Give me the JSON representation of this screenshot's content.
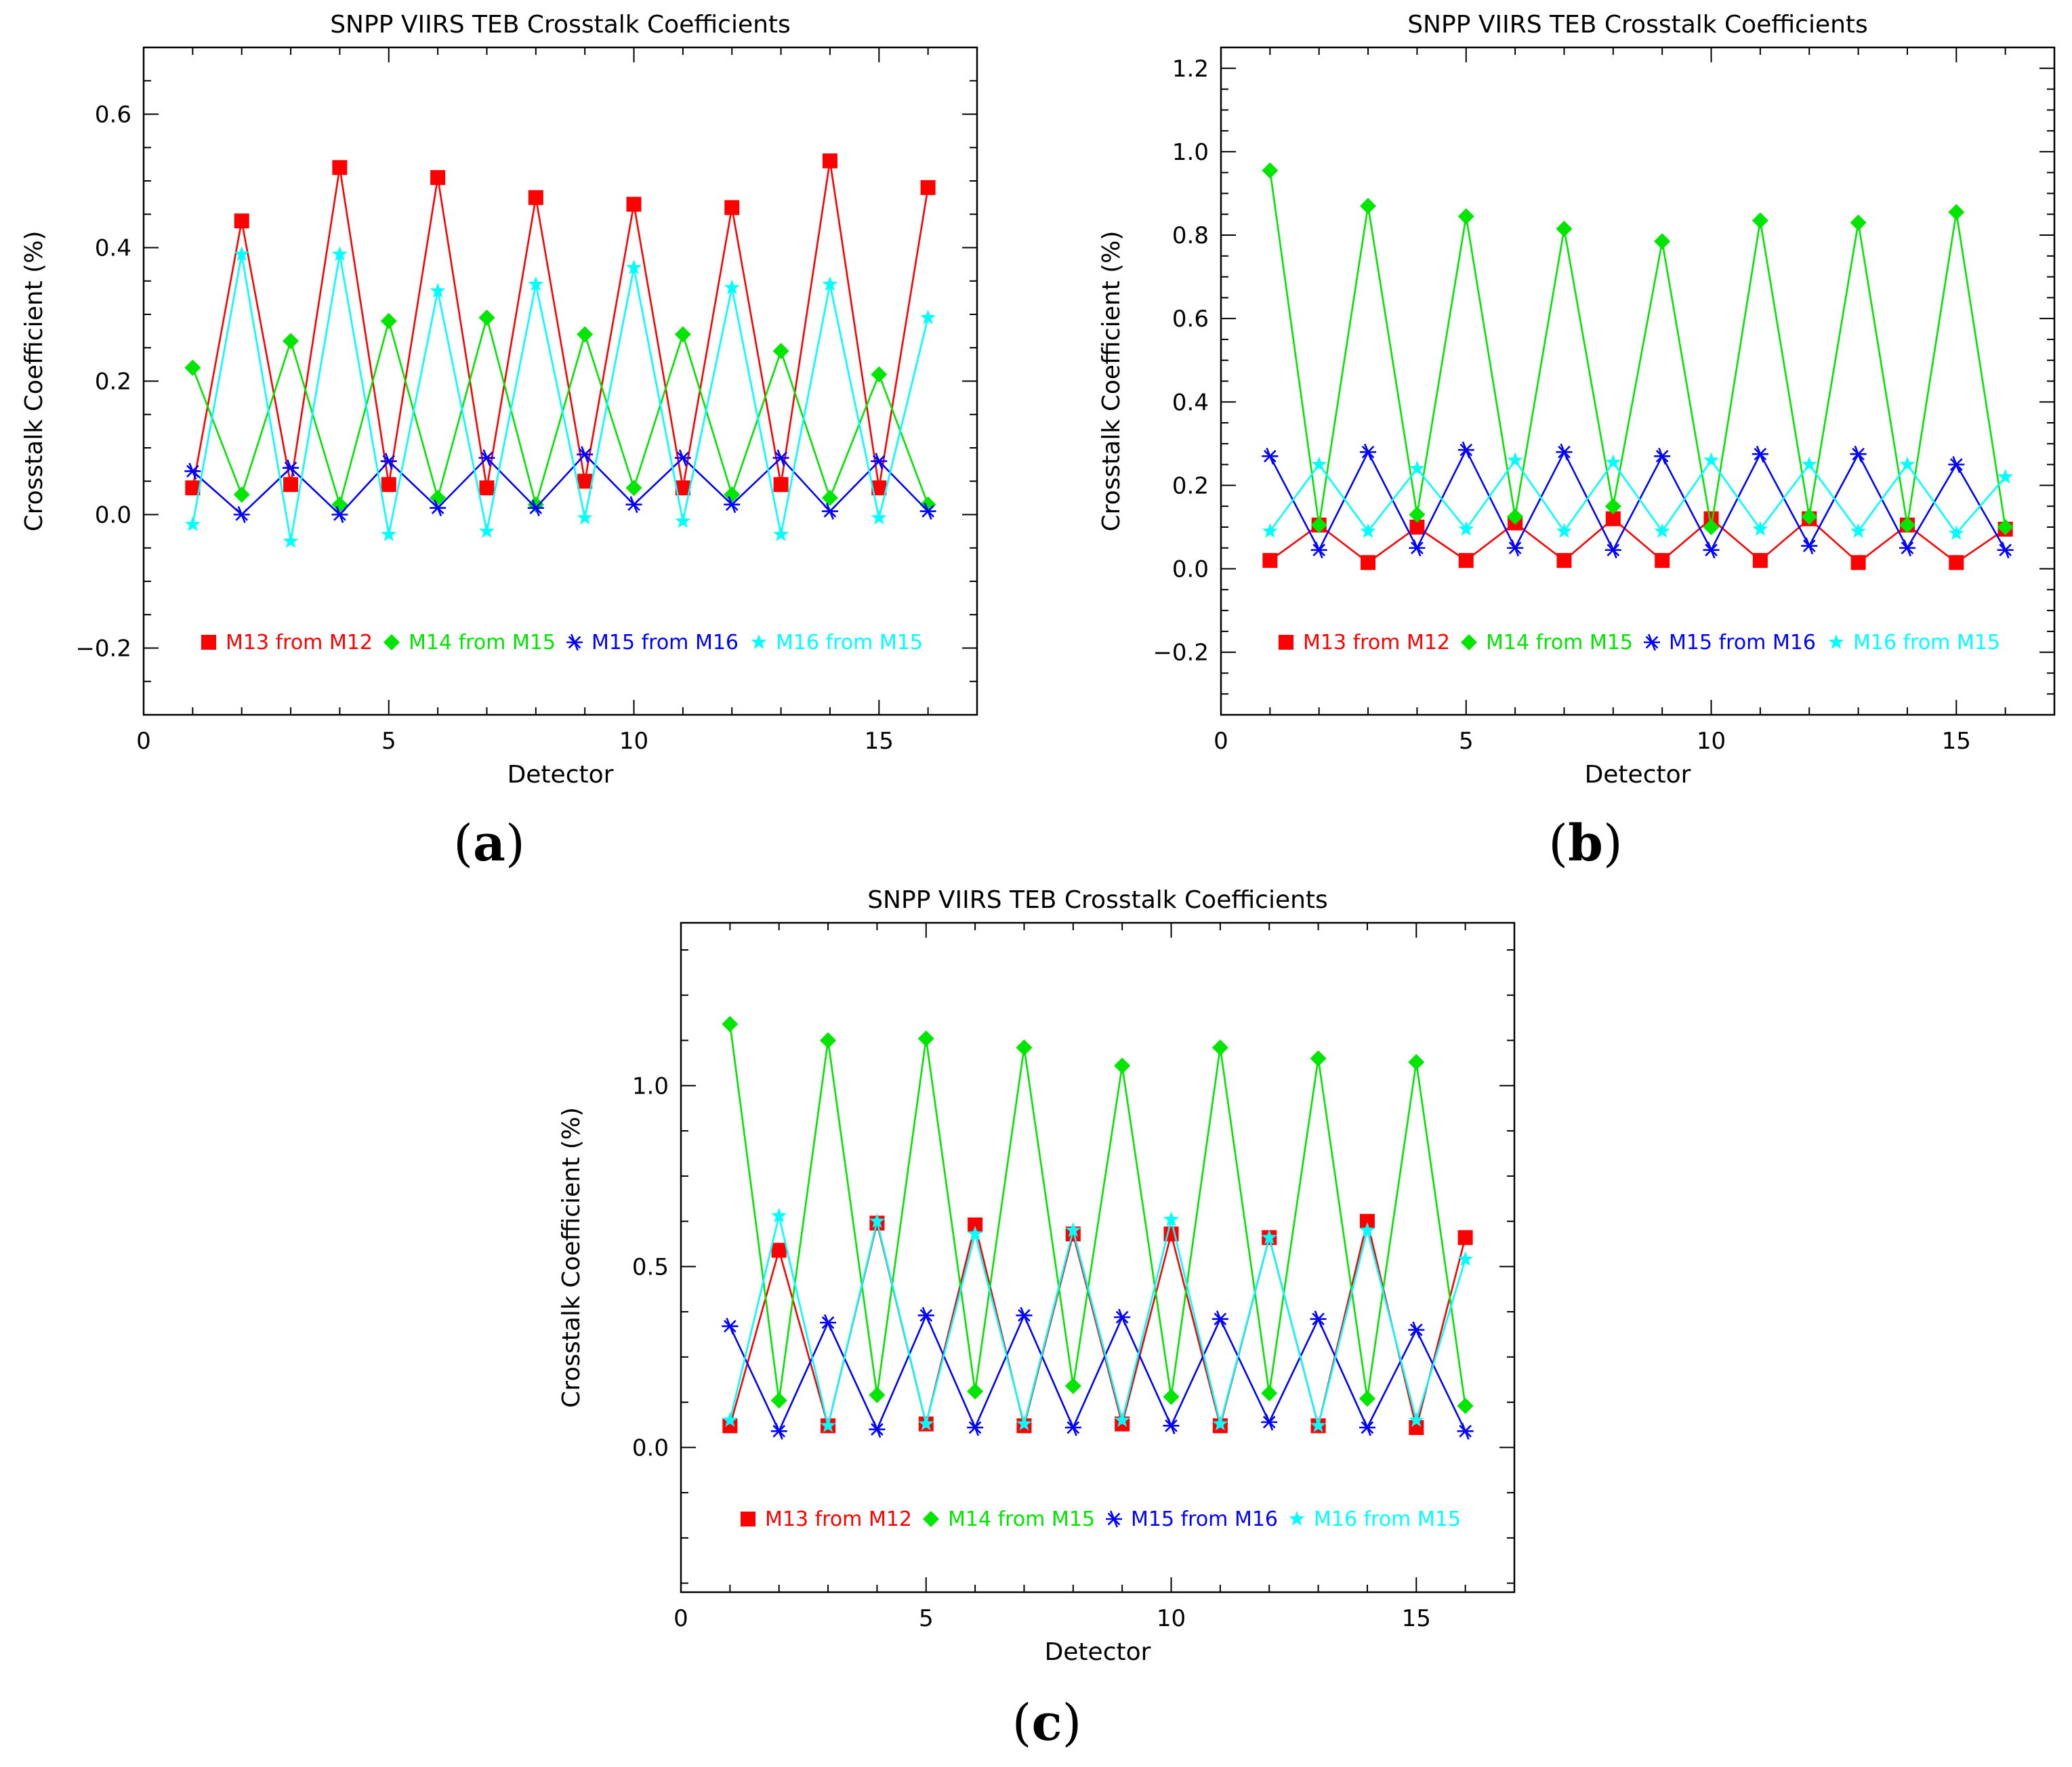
{
  "chart_data": [
    {
      "type": "line",
      "panel": "a",
      "title": "SNPP VIIRS TEB Crosstalk Coefficients",
      "xlabel": "Detector",
      "ylabel": "Crosstalk Coefficient (%)",
      "xlim": [
        0,
        17
      ],
      "ylim": [
        -0.3,
        0.7
      ],
      "xticks": [
        0,
        5,
        10,
        15
      ],
      "yticks": [
        -0.2,
        0.0,
        0.2,
        0.4,
        0.6
      ],
      "ytick_labels": [
        "−0.2",
        "0.0",
        "0.2",
        "0.4",
        "0.6"
      ],
      "x": [
        1,
        2,
        3,
        4,
        5,
        6,
        7,
        8,
        9,
        10,
        11,
        12,
        13,
        14,
        15,
        16
      ],
      "series": [
        {
          "name": "M13 from M12",
          "color": "#ff0000",
          "marker": "square",
          "values": [
            0.04,
            0.44,
            0.045,
            0.52,
            0.045,
            0.505,
            0.04,
            0.475,
            0.05,
            0.465,
            0.04,
            0.46,
            0.045,
            0.53,
            0.04,
            0.49
          ]
        },
        {
          "name": "M14 from M15",
          "color": "#00e600",
          "marker": "diamond",
          "values": [
            0.22,
            0.03,
            0.26,
            0.015,
            0.29,
            0.025,
            0.295,
            0.015,
            0.27,
            0.04,
            0.27,
            0.03,
            0.245,
            0.025,
            0.21,
            0.015
          ]
        },
        {
          "name": "M15 from M16",
          "color": "#0000ff",
          "marker": "asterisk",
          "values": [
            0.065,
            0.0,
            0.07,
            0.0,
            0.08,
            0.01,
            0.085,
            0.01,
            0.09,
            0.015,
            0.085,
            0.015,
            0.085,
            0.005,
            0.08,
            0.005
          ]
        },
        {
          "name": "M16 from M15",
          "color": "#00ffff",
          "marker": "star",
          "values": [
            -0.015,
            0.39,
            -0.04,
            0.39,
            -0.03,
            0.335,
            -0.025,
            0.345,
            -0.005,
            0.37,
            -0.01,
            0.34,
            -0.03,
            0.345,
            -0.005,
            0.295
          ]
        }
      ],
      "legend": "bottom"
    },
    {
      "type": "line",
      "panel": "b",
      "title": "SNPP VIIRS TEB Crosstalk Coefficients",
      "xlabel": "Detector",
      "ylabel": "Crosstalk Coefficient (%)",
      "xlim": [
        0,
        17
      ],
      "ylim": [
        -0.35,
        1.25
      ],
      "xticks": [
        0,
        5,
        10,
        15
      ],
      "yticks": [
        -0.2,
        0.0,
        0.2,
        0.4,
        0.6,
        0.8,
        1.0,
        1.2
      ],
      "ytick_labels": [
        "−0.2",
        "0.0",
        "0.2",
        "0.4",
        "0.6",
        "0.8",
        "1.0",
        "1.2"
      ],
      "x": [
        1,
        2,
        3,
        4,
        5,
        6,
        7,
        8,
        9,
        10,
        11,
        12,
        13,
        14,
        15,
        16
      ],
      "series": [
        {
          "name": "M13 from M12",
          "color": "#ff0000",
          "marker": "square",
          "values": [
            0.02,
            0.105,
            0.015,
            0.1,
            0.02,
            0.11,
            0.02,
            0.12,
            0.02,
            0.12,
            0.02,
            0.12,
            0.015,
            0.105,
            0.015,
            0.095
          ]
        },
        {
          "name": "M14 from M15",
          "color": "#00e600",
          "marker": "diamond",
          "values": [
            0.955,
            0.105,
            0.87,
            0.13,
            0.845,
            0.125,
            0.815,
            0.15,
            0.785,
            0.1,
            0.835,
            0.125,
            0.83,
            0.105,
            0.855,
            0.1
          ]
        },
        {
          "name": "M15 from M16",
          "color": "#0000ff",
          "marker": "asterisk",
          "values": [
            0.27,
            0.045,
            0.28,
            0.05,
            0.285,
            0.05,
            0.28,
            0.045,
            0.27,
            0.045,
            0.275,
            0.055,
            0.275,
            0.05,
            0.25,
            0.045
          ]
        },
        {
          "name": "M16 from M15",
          "color": "#00ffff",
          "marker": "star",
          "values": [
            0.09,
            0.25,
            0.09,
            0.24,
            0.095,
            0.26,
            0.09,
            0.255,
            0.09,
            0.26,
            0.095,
            0.25,
            0.09,
            0.25,
            0.085,
            0.22
          ]
        }
      ],
      "legend": "bottom"
    },
    {
      "type": "line",
      "panel": "c",
      "title": "SNPP VIIRS TEB Crosstalk Coefficients",
      "xlabel": "Detector",
      "ylabel": "Crosstalk Coefficient (%)",
      "xlim": [
        0,
        17
      ],
      "ylim": [
        -0.4,
        1.45
      ],
      "xticks": [
        0,
        5,
        10,
        15
      ],
      "yticks": [
        0.0,
        0.5,
        1.0
      ],
      "ytick_labels": [
        "0.0",
        "0.5",
        "1.0"
      ],
      "x": [
        1,
        2,
        3,
        4,
        5,
        6,
        7,
        8,
        9,
        10,
        11,
        12,
        13,
        14,
        15,
        16
      ],
      "series": [
        {
          "name": "M13 from M12",
          "color": "#ff0000",
          "marker": "square",
          "values": [
            0.06,
            0.545,
            0.06,
            0.62,
            0.065,
            0.615,
            0.06,
            0.59,
            0.065,
            0.59,
            0.06,
            0.58,
            0.06,
            0.625,
            0.055,
            0.58
          ]
        },
        {
          "name": "M14 from M15",
          "color": "#00e600",
          "marker": "diamond",
          "values": [
            1.17,
            0.13,
            1.125,
            0.145,
            1.13,
            0.155,
            1.105,
            0.17,
            1.055,
            0.14,
            1.105,
            0.15,
            1.075,
            0.135,
            1.065,
            0.115
          ]
        },
        {
          "name": "M15 from M16",
          "color": "#0000ff",
          "marker": "asterisk",
          "values": [
            0.335,
            0.045,
            0.345,
            0.05,
            0.365,
            0.055,
            0.365,
            0.055,
            0.36,
            0.06,
            0.355,
            0.07,
            0.355,
            0.055,
            0.325,
            0.045
          ]
        },
        {
          "name": "M16 from M15",
          "color": "#00ffff",
          "marker": "star",
          "values": [
            0.075,
            0.64,
            0.06,
            0.625,
            0.065,
            0.59,
            0.065,
            0.6,
            0.075,
            0.63,
            0.065,
            0.58,
            0.06,
            0.6,
            0.075,
            0.52
          ]
        }
      ],
      "legend": "bottom"
    }
  ]
}
